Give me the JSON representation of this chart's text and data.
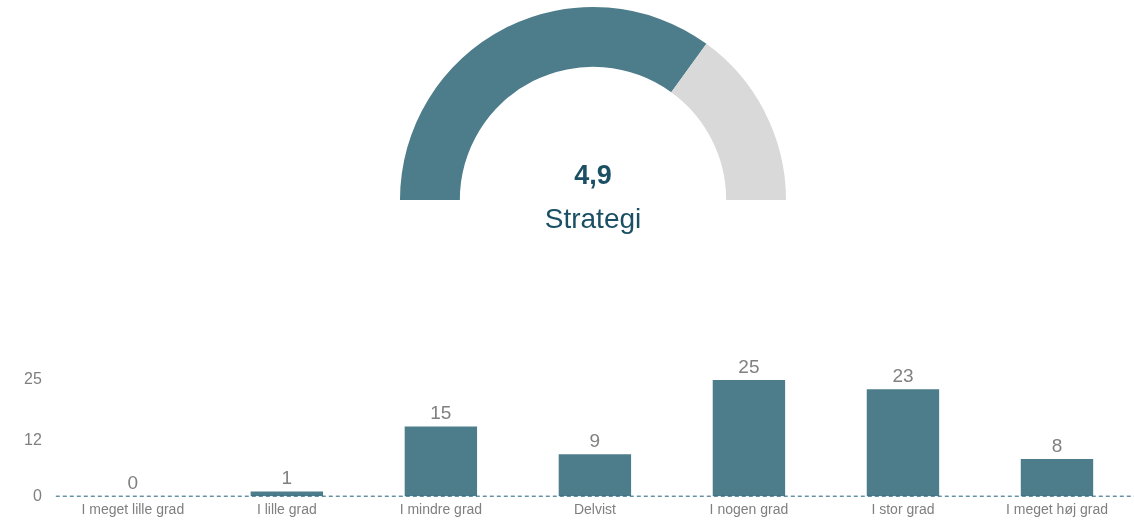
{
  "chart_data": [
    {
      "type": "donut",
      "title": "Strategi",
      "annotations": [
        "4,9"
      ],
      "categories": [
        null,
        null
      ],
      "values": [
        70,
        30
      ],
      "colors": [
        "#4d7c8a",
        "#d9d9d9"
      ],
      "legend": false
    },
    {
      "type": "bar",
      "categories": [
        "I meget lille grad",
        "I lille grad",
        "I mindre grad",
        "Delvist",
        "I nogen grad",
        "I stor grad",
        "I meget høj grad"
      ],
      "values": [
        0,
        1,
        15,
        9,
        25,
        23,
        8
      ],
      "color": "#4d7c8a",
      "ylim": [
        0,
        25
      ],
      "yticks": [
        0,
        12,
        25
      ],
      "grid": false,
      "legend": false,
      "data_labels": true,
      "ref_lines": [
        {
          "axis": "y",
          "value": 0,
          "color": "#1f5f7a",
          "line_style": "dashed"
        }
      ]
    }
  ]
}
